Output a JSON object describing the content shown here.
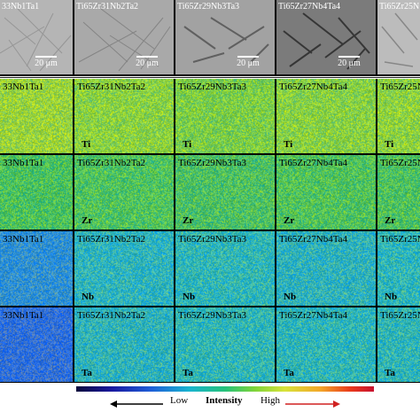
{
  "sem_panels": [
    {
      "label": "33Nb1Ta1",
      "scale": "20 μm"
    },
    {
      "label": "Ti65Zr31Nb2Ta2",
      "scale": "20 μm"
    },
    {
      "label": "Ti65Zr29Nb3Ta3",
      "scale": "20 μm"
    },
    {
      "label": "Ti65Zr27Nb4Ta4",
      "scale": "20 μm"
    },
    {
      "label": "Ti65Zr25N",
      "scale": ""
    }
  ],
  "eds_rows": [
    {
      "element": "Ti",
      "labels": [
        "33Nb1Ta1",
        "Ti65Zr31Nb2Ta2",
        "Ti65Zr29Nb3Ta3",
        "Ti65Zr27Nb4Ta4",
        "Ti65Zr25N"
      ]
    },
    {
      "element": "Zr",
      "labels": [
        "33Nb1Ta1",
        "Ti65Zr31Nb2Ta2",
        "Ti65Zr29Nb3Ta3",
        "Ti65Zr27Nb4Ta4",
        "Ti65Zr25N"
      ]
    },
    {
      "element": "Nb",
      "labels": [
        "33Nb1Ta1",
        "Ti65Zr31Nb2Ta2",
        "Ti65Zr29Nb3Ta3",
        "Ti65Zr27Nb4Ta4",
        "Ti65Zr25N"
      ]
    },
    {
      "element": "Ta",
      "labels": [
        "33Nb1Ta1",
        "Ti65Zr31Nb2Ta2",
        "Ti65Zr29Nb3Ta3",
        "Ti65Zr27Nb4Ta4",
        "Ti65Zr25N"
      ]
    }
  ],
  "eds_colors": [
    [
      "#9ad23a",
      "#8bd040",
      "#7ccc46",
      "#88cf42",
      "#8dd03f"
    ],
    [
      "#4dc05a",
      "#52c25c",
      "#4fbf60",
      "#52c15a",
      "#50c05c"
    ],
    [
      "#2e8fd0",
      "#2fb2b8",
      "#30b4b2",
      "#2fb0b6",
      "#2fb4b4"
    ],
    [
      "#2f6fd8",
      "#2eb0b6",
      "#31b4b0",
      "#2fb3b2",
      "#30b3b1"
    ]
  ],
  "colorbar": {
    "low": "Low",
    "intensity": "Intensity",
    "high": "High",
    "low_arrow_color": "#000000",
    "high_arrow_color": "#d02020"
  }
}
